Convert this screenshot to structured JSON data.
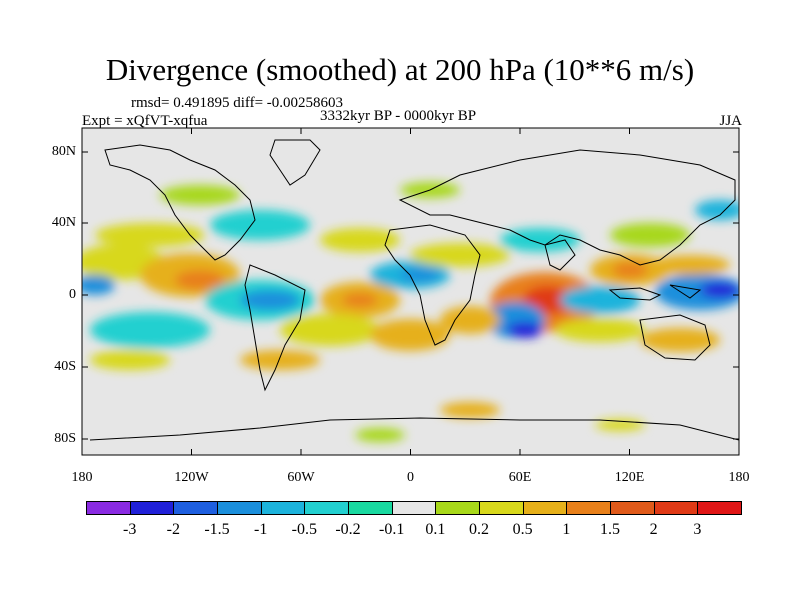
{
  "title": "Divergence (smoothed) at 200 hPa (10**6 m/s)",
  "stats_line": "rmsd= 0.491895 diff= -0.00258603",
  "period": "3332kyr BP - 0000kyr BP",
  "experiment": "Expt = xQfVT-xqfua",
  "season": "JJA",
  "y_axis_ticks": [
    "80N",
    "40N",
    "0",
    "40S",
    "80S"
  ],
  "x_axis_ticks": [
    "180",
    "120W",
    "60W",
    "0",
    "60E",
    "120E",
    "180"
  ],
  "colorbar": {
    "labels": [
      "-3",
      "-2",
      "-1.5",
      "-1",
      "-0.5",
      "-0.2",
      "-0.1",
      "0.1",
      "0.2",
      "0.5",
      "1",
      "1.5",
      "2",
      "3"
    ],
    "colors": [
      "#8a2be2",
      "#2020d8",
      "#1e5fe0",
      "#1b8fdc",
      "#1cb3dc",
      "#22d0d0",
      "#19d9a0",
      "#e6e6e6",
      "#a8d81a",
      "#d8d81c",
      "#e6b01a",
      "#e8801a",
      "#e05a1a",
      "#e03a16",
      "#e01616"
    ]
  },
  "map": {
    "projection": "cylindrical equidistant",
    "lon_range": [
      -180,
      180
    ],
    "lat_range": [
      -90,
      90
    ],
    "background_color": "#e6e6e6"
  }
}
